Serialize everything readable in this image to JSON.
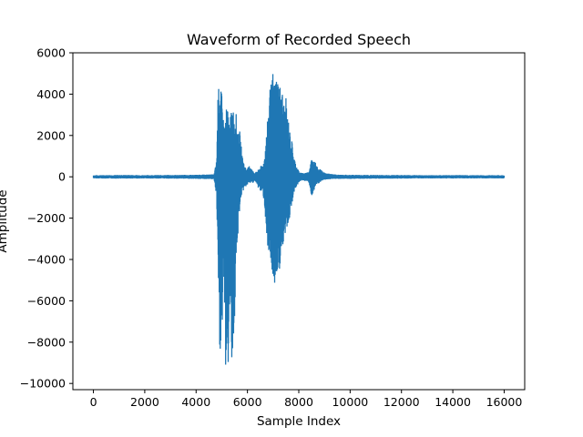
{
  "chart_data": {
    "type": "line",
    "title": "Waveform of Recorded Speech",
    "xlabel": "Sample Index",
    "ylabel": "Amplitude",
    "xlim": [
      -800,
      16800
    ],
    "ylim": [
      -10300,
      6000
    ],
    "x_ticks": [
      0,
      2000,
      4000,
      6000,
      8000,
      10000,
      12000,
      14000,
      16000
    ],
    "y_ticks": [
      -10000,
      -8000,
      -6000,
      -4000,
      -2000,
      0,
      2000,
      4000,
      6000
    ],
    "grid": false,
    "legend": "none",
    "series": [
      {
        "color": "#1f77b4",
        "x": [
          0,
          1000,
          2000,
          3000,
          4000,
          4700,
          4800,
          4850,
          4900,
          4950,
          5000,
          5050,
          5100,
          5150,
          5200,
          5250,
          5300,
          5350,
          5400,
          5450,
          5500,
          5550,
          5600,
          5650,
          5700,
          5750,
          5800,
          5900,
          6000,
          6100,
          6200,
          6300,
          6400,
          6500,
          6600,
          6650,
          6700,
          6750,
          6800,
          6850,
          6900,
          6950,
          7000,
          7050,
          7100,
          7150,
          7200,
          7250,
          7300,
          7350,
          7400,
          7450,
          7500,
          7550,
          7600,
          7650,
          7700,
          7750,
          7800,
          7850,
          7900,
          7950,
          8000,
          8050,
          8100,
          8200,
          8300,
          8400,
          8500,
          8550,
          8600,
          8650,
          8700,
          8800,
          8900,
          9000,
          9200,
          9400,
          9600,
          10000,
          11000,
          12000,
          13000,
          14000,
          15000,
          16000
        ],
        "upper": [
          80,
          90,
          85,
          90,
          100,
          120,
          800,
          4000,
          4500,
          4300,
          4000,
          3000,
          2500,
          3000,
          3500,
          3200,
          2600,
          3000,
          3500,
          3300,
          3000,
          3200,
          2500,
          2000,
          2200,
          1600,
          1000,
          500,
          400,
          600,
          300,
          200,
          300,
          500,
          600,
          800,
          1500,
          2200,
          3000,
          4000,
          4600,
          4400,
          5300,
          4500,
          5000,
          4800,
          4900,
          4400,
          4600,
          4200,
          3800,
          3400,
          3800,
          3000,
          2800,
          2200,
          2000,
          1600,
          1000,
          800,
          600,
          400,
          300,
          200,
          200,
          200,
          200,
          300,
          900,
          800,
          750,
          700,
          500,
          400,
          300,
          200,
          150,
          120,
          100,
          100,
          90,
          90,
          80,
          85,
          80,
          80
        ],
        "lower": [
          -80,
          -90,
          -85,
          -90,
          -100,
          -120,
          -1000,
          -4500,
          -8800,
          -8500,
          -8900,
          -6000,
          -5500,
          -9400,
          -9200,
          -9300,
          -7000,
          -6500,
          -9400,
          -8500,
          -7000,
          -5000,
          -3500,
          -2500,
          -1500,
          -1000,
          -800,
          -500,
          -400,
          -300,
          -300,
          -200,
          -500,
          -700,
          -800,
          -1200,
          -2000,
          -3000,
          -4500,
          -4600,
          -4000,
          -5800,
          -4500,
          -5500,
          -5200,
          -5000,
          -4800,
          -4500,
          -4000,
          -3800,
          -3500,
          -3000,
          -2700,
          -2400,
          -2200,
          -2000,
          -1500,
          -1200,
          -800,
          -600,
          -500,
          -400,
          -300,
          -200,
          -200,
          -200,
          -200,
          -300,
          -1000,
          -800,
          -700,
          -500,
          -400,
          -300,
          -200,
          -150,
          -120,
          -100,
          -100,
          -100,
          -90,
          -90,
          -80,
          -85,
          -80,
          -80
        ]
      }
    ]
  }
}
